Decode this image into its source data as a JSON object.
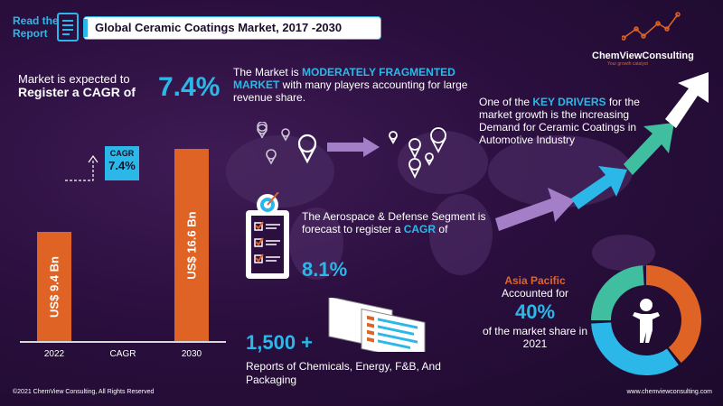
{
  "header": {
    "read_line1": "Read the",
    "read_line2": "Report",
    "title": "Global Ceramic Coatings Market, 2017 -2030"
  },
  "cagr_section": {
    "line1": "Market is expected to",
    "line2": "Register a CAGR of",
    "value": "7.4%"
  },
  "chart_data": {
    "type": "bar",
    "categories": [
      "2022",
      "CAGR",
      "2030"
    ],
    "values": [
      9.4,
      null,
      16.6
    ],
    "bar_labels": [
      "US$ 9.4 Bn",
      "",
      "US$ 16.6 Bn"
    ],
    "cagr_badge_label": "CAGR",
    "cagr_badge_value": "7.4%",
    "ylim": [
      0,
      17
    ],
    "colors": {
      "bar": "#e06326",
      "badge": "#2bb8e8"
    }
  },
  "fragmentation": {
    "prefix": "The Market is ",
    "highlight": "MODERATELY FRAGMENTED MARKET",
    "suffix": " with many players accounting for large revenue share."
  },
  "drivers": {
    "prefix": "One of the ",
    "highlight": "KEY DRIVERS",
    "suffix": " for the market growth is the increasing Demand for Ceramic Coatings in Automotive Industry"
  },
  "aerospace": {
    "prefix": "The Aerospace & Defense Segment is forecast to register a ",
    "highlight": "CAGR",
    "suffix": " of",
    "value": "8.1%"
  },
  "reports": {
    "value": "1,500 +",
    "text": "Reports of Chemicals, Energy, F&B, And Packaging"
  },
  "asia": {
    "region": "Asia Pacific",
    "line1": "Accounted for",
    "value": "40%",
    "line2": "of the market share in 2021",
    "donut_shares": [
      0.4,
      0.35,
      0.25
    ],
    "donut_colors": [
      "#e06326",
      "#2bb8e8",
      "#3fbfa0"
    ]
  },
  "logo": {
    "name": "ChemViewConsulting",
    "tagline": "Your growth catalyst"
  },
  "footer": {
    "copyright": "©2021 ChemView Consulting, All Rights Reserved",
    "website": "www.chemviewconsulting.com"
  },
  "colors": {
    "accent": "#2bb8e8",
    "orange": "#e06326",
    "bg": "#2b0f3f"
  }
}
